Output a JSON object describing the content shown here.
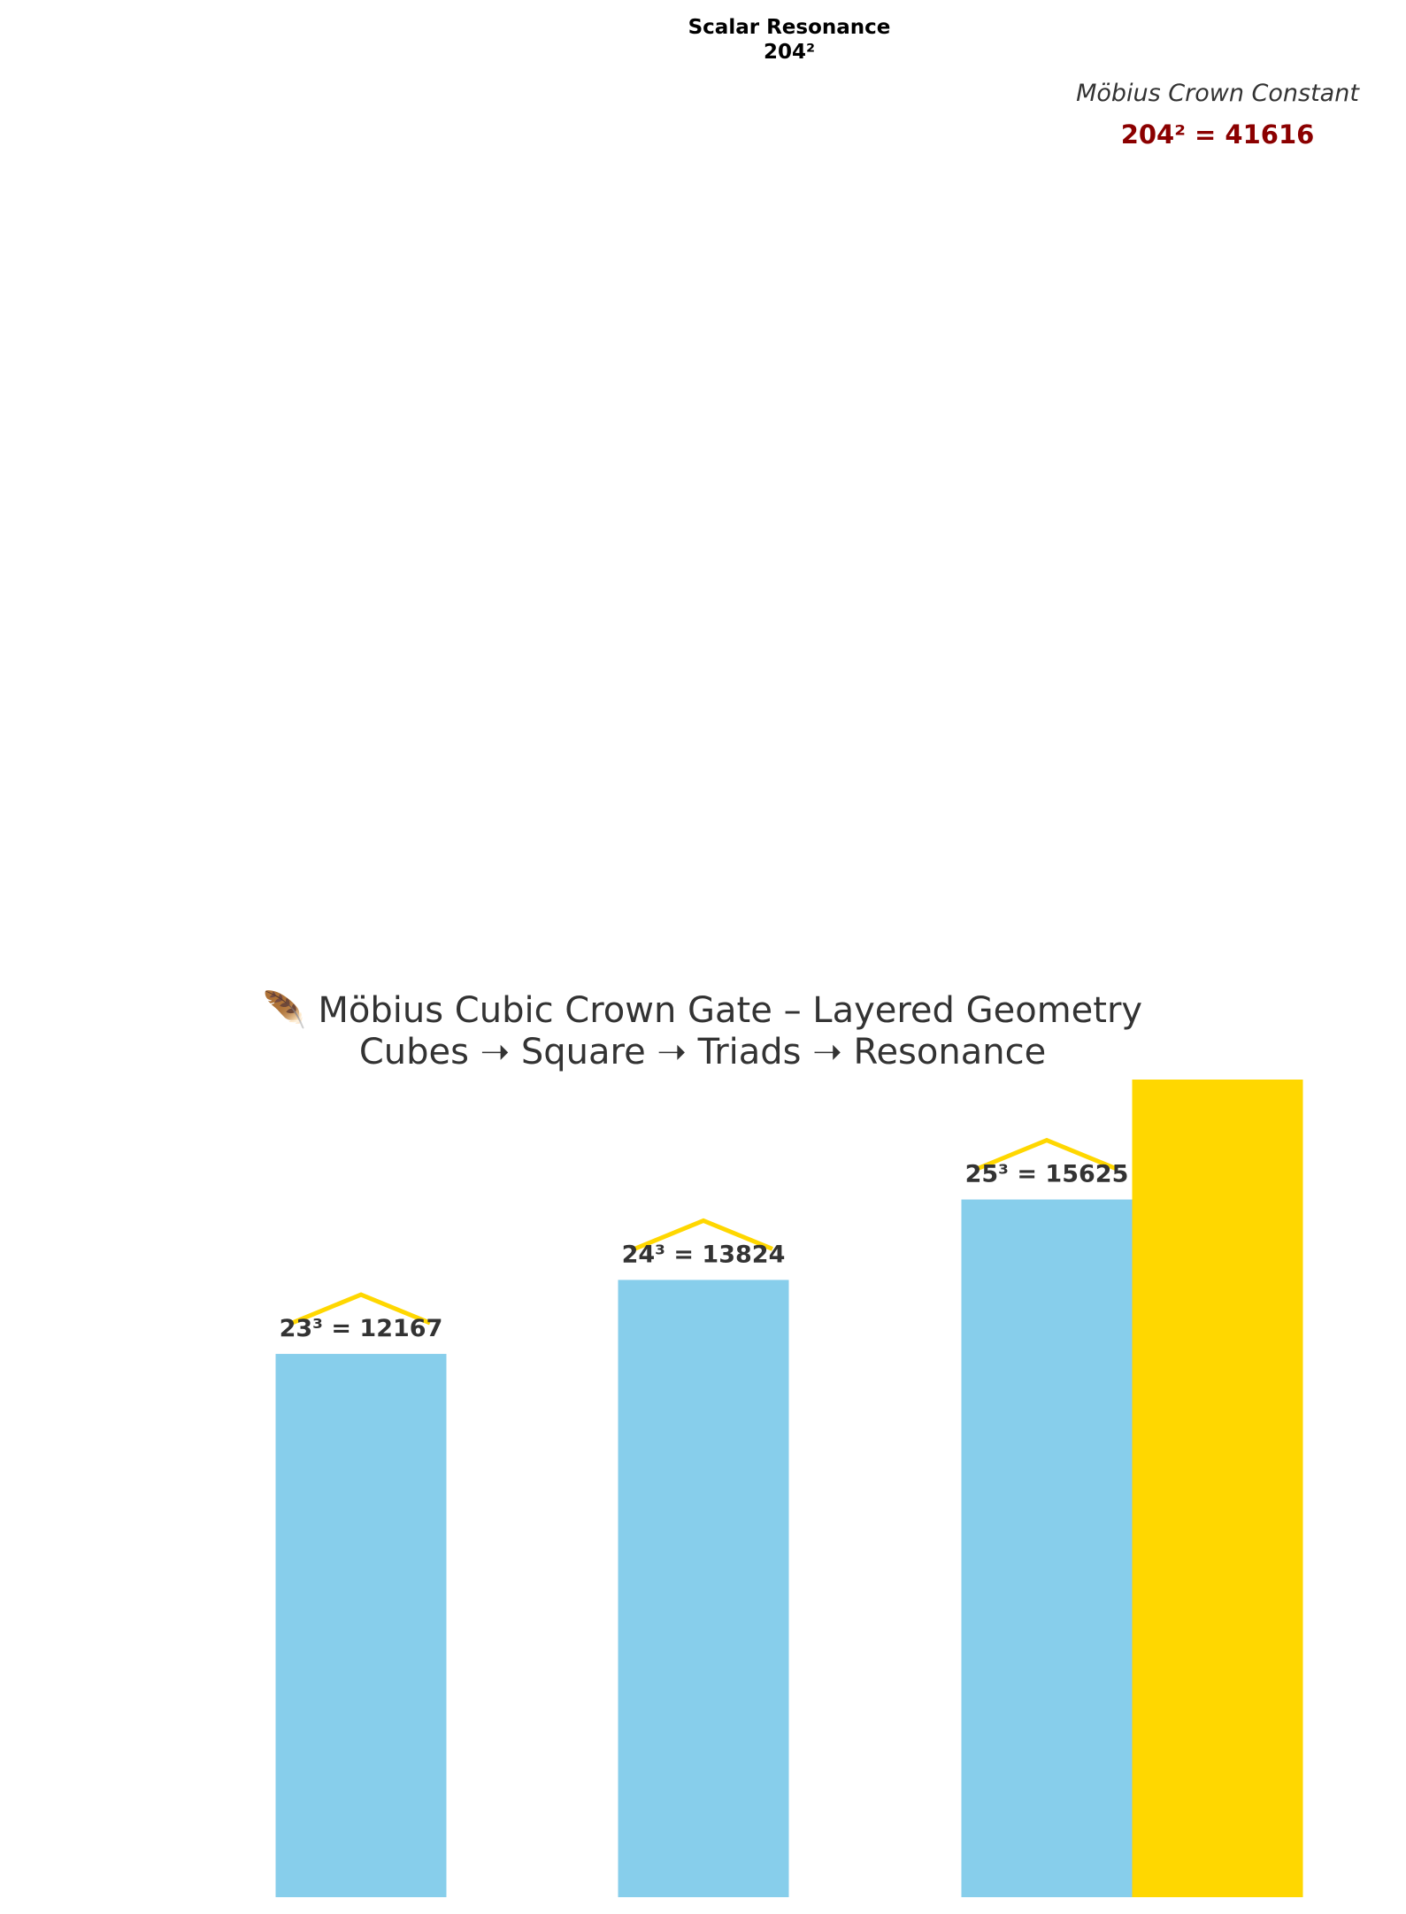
{
  "chart_data": {
    "type": "bar",
    "title": "🪶 Möbius Cubic Crown Gate – Layered Geometry",
    "subtitle": "Cubes ➝ Square ➝ Triads ➝ Resonance",
    "bars": [
      {
        "label": "23³ = 12167",
        "value": 12167,
        "color": "#87CEEB",
        "crown": true
      },
      {
        "label": "24³ = 13824",
        "value": 13824,
        "color": "#87CEEB",
        "crown": true
      },
      {
        "label": "25³ = 15625",
        "value": 15625,
        "color": "#87CEEB",
        "crown": true
      },
      {
        "label": "Scalar Resonance\n204²",
        "value": 41616,
        "color": "#FFD700",
        "crown": false
      }
    ],
    "ylim": [
      0,
      41616
    ],
    "grid": false,
    "crown_color": "#FFD700",
    "annotation": {
      "caption": "Möbius Crown Constant",
      "value_text": "204² = 41616",
      "value_color": "#8B0000"
    }
  }
}
